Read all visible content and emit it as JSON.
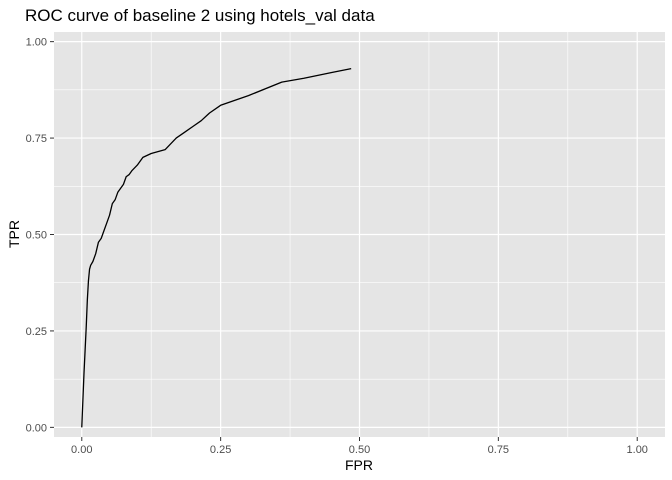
{
  "chart_data": {
    "type": "line",
    "title": "ROC curve of baseline 2 using hotels_val data",
    "xlabel": "FPR",
    "ylabel": "TPR",
    "xlim": [
      -0.05,
      1.05
    ],
    "ylim": [
      -0.025,
      1.025
    ],
    "x_ticks": [
      0.0,
      0.25,
      0.5,
      0.75,
      1.0
    ],
    "x_tick_labels": [
      "0.00",
      "0.25",
      "0.50",
      "0.75",
      "1.00"
    ],
    "y_ticks": [
      0.0,
      0.25,
      0.5,
      0.75,
      1.0
    ],
    "y_tick_labels": [
      "0.00",
      "0.25",
      "0.50",
      "0.75",
      "1.00"
    ],
    "grid": true,
    "colors": {
      "panel": "#e5e5e5",
      "grid": "#ffffff",
      "line": "#000000",
      "tick_text": "#4d4d4d"
    },
    "series": [
      {
        "x": [
          0.0,
          0.002,
          0.004,
          0.006,
          0.008,
          0.01,
          0.012,
          0.014,
          0.016,
          0.02,
          0.025,
          0.03,
          0.035,
          0.04,
          0.045,
          0.05,
          0.055,
          0.06,
          0.065,
          0.07,
          0.075,
          0.08,
          0.085,
          0.09,
          0.1,
          0.11,
          0.125,
          0.15,
          0.17,
          0.185,
          0.2,
          0.215,
          0.23,
          0.25,
          0.3,
          0.36,
          0.4,
          0.45,
          0.485
        ],
        "y": [
          0.0,
          0.07,
          0.14,
          0.2,
          0.26,
          0.33,
          0.38,
          0.41,
          0.42,
          0.43,
          0.45,
          0.48,
          0.49,
          0.51,
          0.53,
          0.55,
          0.58,
          0.59,
          0.61,
          0.62,
          0.63,
          0.65,
          0.655,
          0.665,
          0.68,
          0.7,
          0.71,
          0.72,
          0.75,
          0.765,
          0.78,
          0.795,
          0.815,
          0.835,
          0.86,
          0.895,
          0.905,
          0.92,
          0.93
        ]
      }
    ]
  }
}
